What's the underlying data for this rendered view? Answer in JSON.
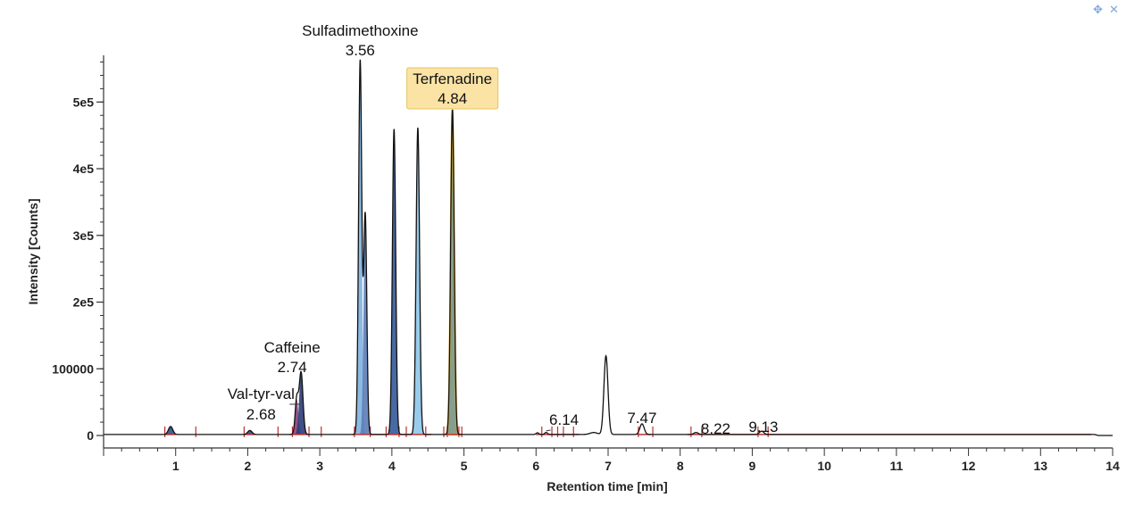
{
  "chart_data": {
    "type": "line",
    "xlabel": "Retention time [min]",
    "ylabel": "Intensity [Counts]",
    "xlim": [
      0,
      14
    ],
    "ylim": [
      -8000,
      570000
    ],
    "x_ticks": [
      1,
      2,
      3,
      4,
      5,
      6,
      7,
      8,
      9,
      10,
      11,
      12,
      13,
      14
    ],
    "y_ticks": [
      {
        "value": 0,
        "label": "0"
      },
      {
        "value": 100000,
        "label": "100000"
      },
      {
        "value": 200000,
        "label": "2e5"
      },
      {
        "value": 300000,
        "label": "3e5"
      },
      {
        "value": 400000,
        "label": "4e5"
      },
      {
        "value": 500000,
        "label": "5e5"
      }
    ],
    "baseline": 1500,
    "trace_end_time": 13.75,
    "peaks": [
      {
        "rt": 0.93,
        "height": 12000,
        "width": 0.03,
        "fill": "#2c4f86"
      },
      {
        "rt": 2.03,
        "height": 6000,
        "width": 0.03,
        "fill": "#2c4f86"
      },
      {
        "rt": 2.68,
        "height": 53000,
        "width": 0.022,
        "fill": "#8a3f78"
      },
      {
        "rt": 2.74,
        "height": 93000,
        "width": 0.026,
        "fill": "#2b3d78"
      },
      {
        "rt": 3.56,
        "height": 560000,
        "width": 0.022,
        "fill": "#7fb2de"
      },
      {
        "rt": 3.63,
        "height": 330000,
        "width": 0.022,
        "fill": "#5d7db8"
      },
      {
        "rt": 4.03,
        "height": 458000,
        "width": 0.023,
        "fill": "#345a98"
      },
      {
        "rt": 4.36,
        "height": 460000,
        "width": 0.024,
        "fill": "#8ec6ea"
      },
      {
        "rt": 4.84,
        "height": 487000,
        "width": 0.024,
        "fill": "#7a9480",
        "highlight": true
      },
      {
        "rt": 6.02,
        "height": 2500,
        "width": 0.02
      },
      {
        "rt": 6.14,
        "height": 3000,
        "width": 0.02
      },
      {
        "rt": 6.8,
        "height": 3000,
        "width": 0.05
      },
      {
        "rt": 6.97,
        "height": 118000,
        "width": 0.028
      },
      {
        "rt": 7.47,
        "height": 16000,
        "width": 0.03
      },
      {
        "rt": 8.22,
        "height": 3000,
        "width": 0.03
      },
      {
        "rt": 9.13,
        "height": 5000,
        "width": 0.03
      }
    ],
    "annotations": [
      {
        "name": "Sulfadimethoxine",
        "rt_label": "3.56",
        "x": 3.56,
        "y": 560000,
        "highlight": false
      },
      {
        "name": "Terfenadine",
        "rt_label": "4.84",
        "x": 4.84,
        "y": 487000,
        "highlight": true
      },
      {
        "name": "Caffeine",
        "rt_label": "2.74",
        "x": 2.74,
        "y": 93000,
        "highlight": false
      },
      {
        "name": "Val-tyr-val",
        "rt_label": "2.68",
        "x": 2.68,
        "y": 53000,
        "highlight": false
      },
      {
        "name": "",
        "rt_label": "6.14",
        "x": 6.14,
        "y": 3000,
        "highlight": false
      },
      {
        "name": "",
        "rt_label": "7.47",
        "x": 7.47,
        "y": 16000,
        "highlight": false
      },
      {
        "name": "",
        "rt_label": "8.22",
        "x": 8.22,
        "y": 3000,
        "highlight": false
      },
      {
        "name": "",
        "rt_label": "9.13",
        "x": 9.13,
        "y": 5000,
        "highlight": false
      }
    ],
    "peak_boundary_markers": [
      0.85,
      1.28,
      1.95,
      2.42,
      2.62,
      2.85,
      3.02,
      3.48,
      3.7,
      3.92,
      4.1,
      4.2,
      4.47,
      4.72,
      4.77,
      4.93,
      4.97,
      6.08,
      6.22,
      6.3,
      6.38,
      6.52,
      7.42,
      7.62,
      8.15,
      8.3,
      9.08,
      9.22
    ],
    "colors": {
      "trace": "#111111",
      "baseline_segments": "#b83232",
      "highlight_box": "#fbe3a6",
      "highlight_border": "#e7c45a",
      "highlight_peak_outline": "#e0b13a"
    }
  },
  "window_icons": [
    "pin-icon",
    "close-icon"
  ]
}
